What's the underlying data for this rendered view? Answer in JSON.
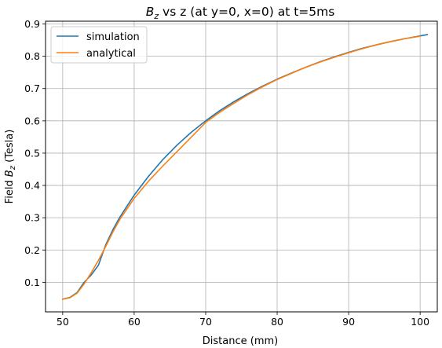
{
  "chart_data": {
    "type": "line",
    "title": {
      "main": "B",
      "sub": "z",
      "rest": " vs z (at y=0, x=0) at t=5ms"
    },
    "xlabel": "Distance (mm)",
    "ylabel": {
      "pre": "Field ",
      "main": "B",
      "sub": "z",
      "post": " (Tesla)"
    },
    "xlim": [
      47.6,
      102.4
    ],
    "ylim": [
      0.0085,
      0.9085
    ],
    "xticks": [
      50,
      60,
      70,
      80,
      90,
      100
    ],
    "yticks": [
      0.1,
      0.2,
      0.3,
      0.4,
      0.5,
      0.6,
      0.7,
      0.8,
      0.9
    ],
    "grid": true,
    "legend_position": "top-left",
    "series": [
      {
        "name": "simulation",
        "color": "#1f77b4",
        "x": [
          50,
          51,
          52,
          53,
          54,
          55,
          56,
          57,
          58,
          60,
          62,
          64,
          66,
          68,
          70,
          72,
          74,
          76,
          78,
          80,
          82,
          84,
          86,
          88,
          90,
          92,
          94,
          96,
          98,
          100,
          101
        ],
        "y": [
          0.048,
          0.053,
          0.068,
          0.1,
          0.123,
          0.153,
          0.215,
          0.262,
          0.302,
          0.37,
          0.428,
          0.48,
          0.525,
          0.565,
          0.6,
          0.632,
          0.66,
          0.685,
          0.708,
          0.729,
          0.748,
          0.766,
          0.783,
          0.798,
          0.812,
          0.825,
          0.836,
          0.846,
          0.855,
          0.863,
          0.867
        ]
      },
      {
        "name": "analytical",
        "color": "#ff7f0e",
        "x": [
          50,
          51,
          52,
          53,
          54,
          55,
          56,
          57,
          58,
          60,
          62,
          64,
          66,
          68,
          70,
          72,
          74,
          76,
          78,
          80,
          82,
          84,
          86,
          88,
          90,
          92,
          94,
          96,
          98,
          100
        ],
        "y": [
          0.048,
          0.052,
          0.066,
          0.095,
          0.13,
          0.168,
          0.21,
          0.255,
          0.295,
          0.36,
          0.413,
          0.46,
          0.505,
          0.55,
          0.595,
          0.627,
          0.655,
          0.682,
          0.706,
          0.728,
          0.747,
          0.766,
          0.782,
          0.797,
          0.811,
          0.824,
          0.836,
          0.846,
          0.855,
          0.862
        ]
      }
    ]
  }
}
